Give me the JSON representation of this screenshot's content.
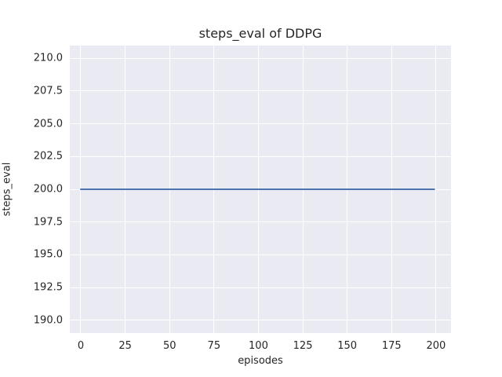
{
  "chart_data": {
    "type": "line",
    "title": "steps_eval of DDPG",
    "xlabel": "episodes",
    "ylabel": "steps_eval",
    "xlim": [
      -6.18,
      208.43
    ],
    "ylim": [
      189.04,
      210.96
    ],
    "grid": true,
    "legend": null,
    "x_ticks": [
      0,
      25,
      50,
      75,
      100,
      125,
      150,
      175,
      200
    ],
    "x_tick_labels": [
      "0",
      "25",
      "50",
      "75",
      "100",
      "125",
      "150",
      "175",
      "200"
    ],
    "y_ticks": [
      190.0,
      192.5,
      195.0,
      197.5,
      200.0,
      202.5,
      205.0,
      207.5,
      210.0
    ],
    "y_tick_labels": [
      "190.0",
      "192.5",
      "195.0",
      "197.5",
      "200.0",
      "202.5",
      "205.0",
      "207.5",
      "210.0"
    ],
    "series": [
      {
        "name": "DDPG",
        "constant_value": 200.0,
        "x": [
          0,
          199
        ],
        "y": [
          200.0,
          200.0
        ],
        "note": "flat horizontal line: steps_eval equals 200 for every evaluated episode 0 through 199"
      }
    ],
    "colors": {
      "line": "#4C72B0",
      "plot_background": "#EAEAF2",
      "gridline": "#FFFFFF",
      "text": "#262626",
      "figure_background": "#FFFFFF"
    }
  }
}
